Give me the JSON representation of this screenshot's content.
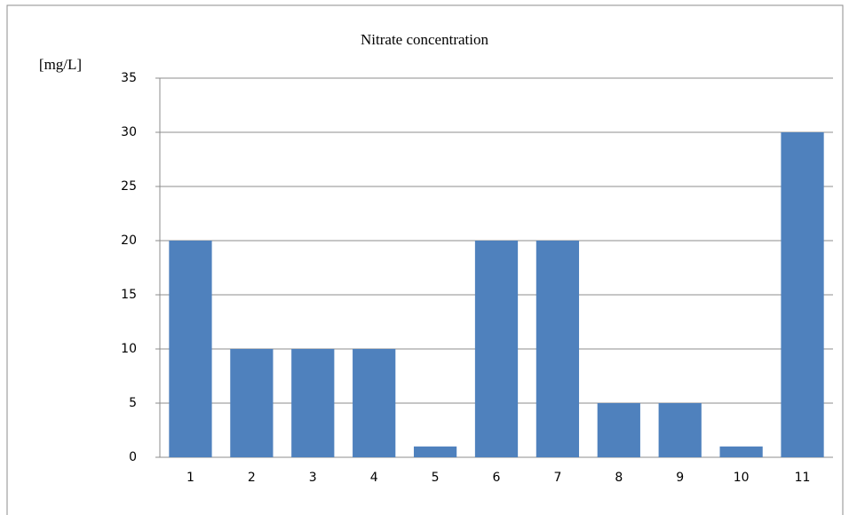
{
  "chart_data": {
    "type": "bar",
    "title": "Nitrate concentration",
    "y_label": "[mg/L]",
    "categories": [
      "1",
      "2",
      "3",
      "4",
      "5",
      "6",
      "7",
      "8",
      "9",
      "10",
      "11"
    ],
    "values": [
      20,
      10,
      10,
      10,
      1,
      20,
      20,
      5,
      5,
      1,
      30
    ],
    "color": "#4f81bd",
    "ylim": [
      0,
      35
    ],
    "yticks": [
      0,
      5,
      10,
      15,
      20,
      25,
      30,
      35
    ],
    "grid": true
  }
}
